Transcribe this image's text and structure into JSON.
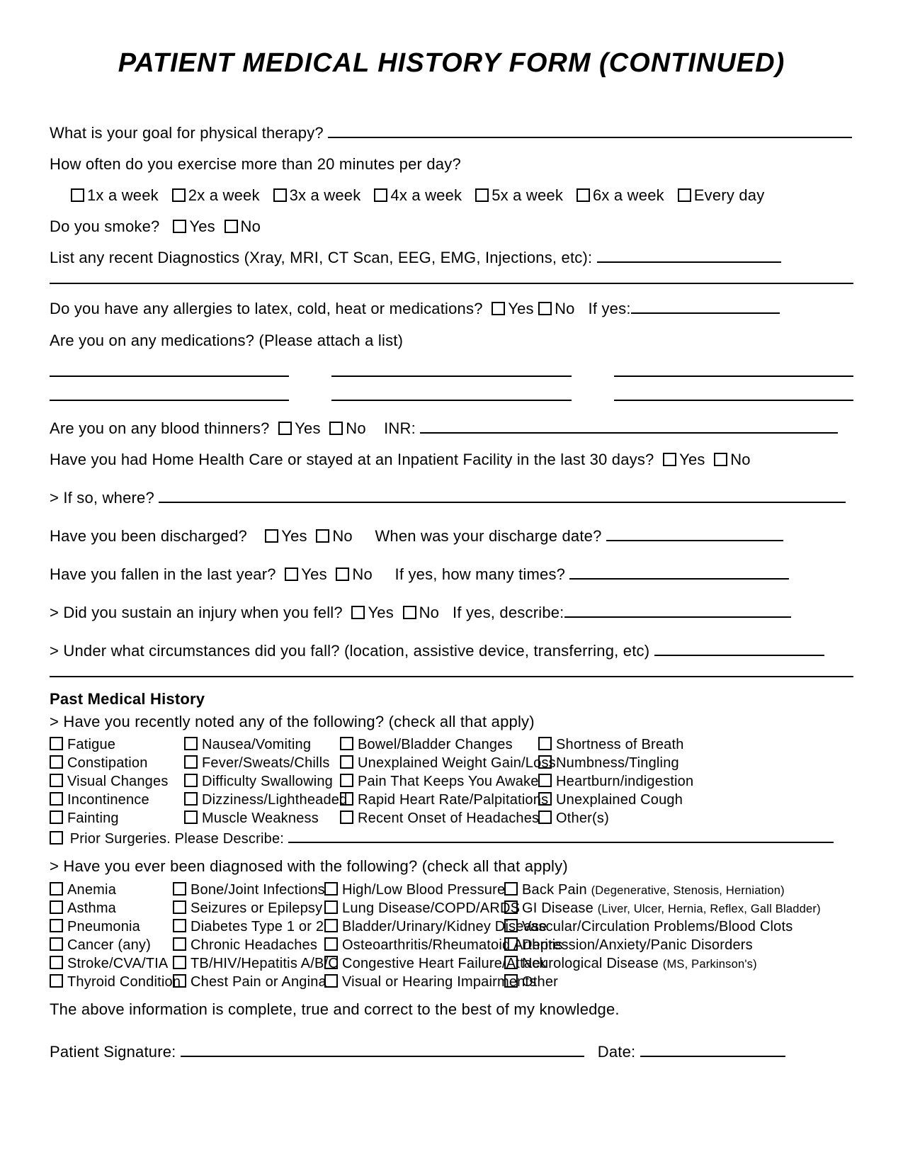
{
  "title": "PATIENT MEDICAL HISTORY FORM (CONTINUED)",
  "q_goal": "What is your goal for physical therapy?",
  "q_exercise": "How often do you exercise more than 20 minutes per day?",
  "exercise_opts": [
    "1x a week",
    "2x a week",
    "3x a week",
    "4x a week",
    "5x a week",
    "6x a week",
    "Every day"
  ],
  "q_smoke": "Do you smoke?",
  "yes": "Yes",
  "no": "No",
  "q_diag": "List any recent Diagnostics (Xray, MRI, CT Scan, EEG, EMG, Injections, etc):",
  "q_allergy": "Do you have any allergies to latex, cold, heat or medications?",
  "ifyes": "If yes:",
  "q_meds": "Are you on any medications? (Please attach a list)",
  "q_thinners": "Are you on any blood thinners?",
  "inr": "INR:",
  "q_homehealth": "Have you had Home Health Care or stayed at an Inpatient Facility in the last 30 days?",
  "q_where": "> If so, where?",
  "q_discharged": "Have you been discharged?",
  "q_dischdate": "When was your discharge date?",
  "q_fallen": "Have you fallen in the last year?",
  "q_falltimes": "If yes, how many times?",
  "q_injury": "> Did you sustain an injury when you fell?",
  "q_injdesc": "If yes, describe:",
  "q_circ": "> Under what circumstances did you fall? (location, assistive device, transferring, etc)",
  "pmh_title": "Past Medical History",
  "pmh_noted": "> Have you recently noted any of the following? (check all that apply)",
  "noted": {
    "c1": [
      "Fatigue",
      "Constipation",
      "Visual Changes",
      "Incontinence",
      "Fainting"
    ],
    "c2": [
      "Nausea/Vomiting",
      "Fever/Sweats/Chills",
      "Difficulty Swallowing",
      "Dizziness/Lightheaded",
      "Muscle Weakness"
    ],
    "c3": [
      "Bowel/Bladder Changes",
      "Unexplained Weight Gain/Loss",
      "Pain That Keeps You Awake",
      "Rapid Heart Rate/Palpitations",
      "Recent Onset of Headaches"
    ],
    "c4": [
      "Shortness of Breath",
      "Numbness/Tingling",
      "Heartburn/indigestion",
      "Unexplained Cough",
      "Other(s)"
    ]
  },
  "surg": "Prior Surgeries. Please Describe:",
  "pmh_diag": "> Have you ever been diagnosed with the following? (check all that apply)",
  "diag": {
    "c1": [
      "Anemia",
      "Asthma",
      "Pneumonia",
      "Cancer (any)",
      "Stroke/CVA/TIA",
      "Thyroid Condition"
    ],
    "c2": [
      "Bone/Joint Infections",
      "Seizures or Epilepsy",
      "Diabetes Type 1 or 2",
      "Chronic Headaches",
      "TB/HIV/Hepatitis A/B/C",
      "Chest Pain or Angina"
    ],
    "c3": [
      "High/Low Blood Pressure",
      "Lung Disease/COPD/ARDS",
      "Bladder/Urinary/Kidney Disease",
      "Osteoarthritis/Rheumatoid Arthritis",
      "Congestive Heart Failure/Attack",
      "Visual or Hearing Impairments"
    ],
    "c4": [
      {
        "main": "Back Pain ",
        "sub": "(Degenerative, Stenosis, Herniation)"
      },
      {
        "main": "GI Disease ",
        "sub": "(Liver, Ulcer, Hernia, Reflex, Gall Bladder)"
      },
      {
        "main": "Vascular/Circulation Problems/Blood Clots",
        "sub": ""
      },
      {
        "main": "Depression/Anxiety/Panic Disorders",
        "sub": ""
      },
      {
        "main": "Neurological Disease ",
        "sub": "(MS, Parkinson's)"
      },
      {
        "main": "Other",
        "sub": ""
      }
    ]
  },
  "attest": "The above information is complete, true and correct to the best of my knowledge.",
  "sig": "Patient Signature:",
  "date": "Date:"
}
